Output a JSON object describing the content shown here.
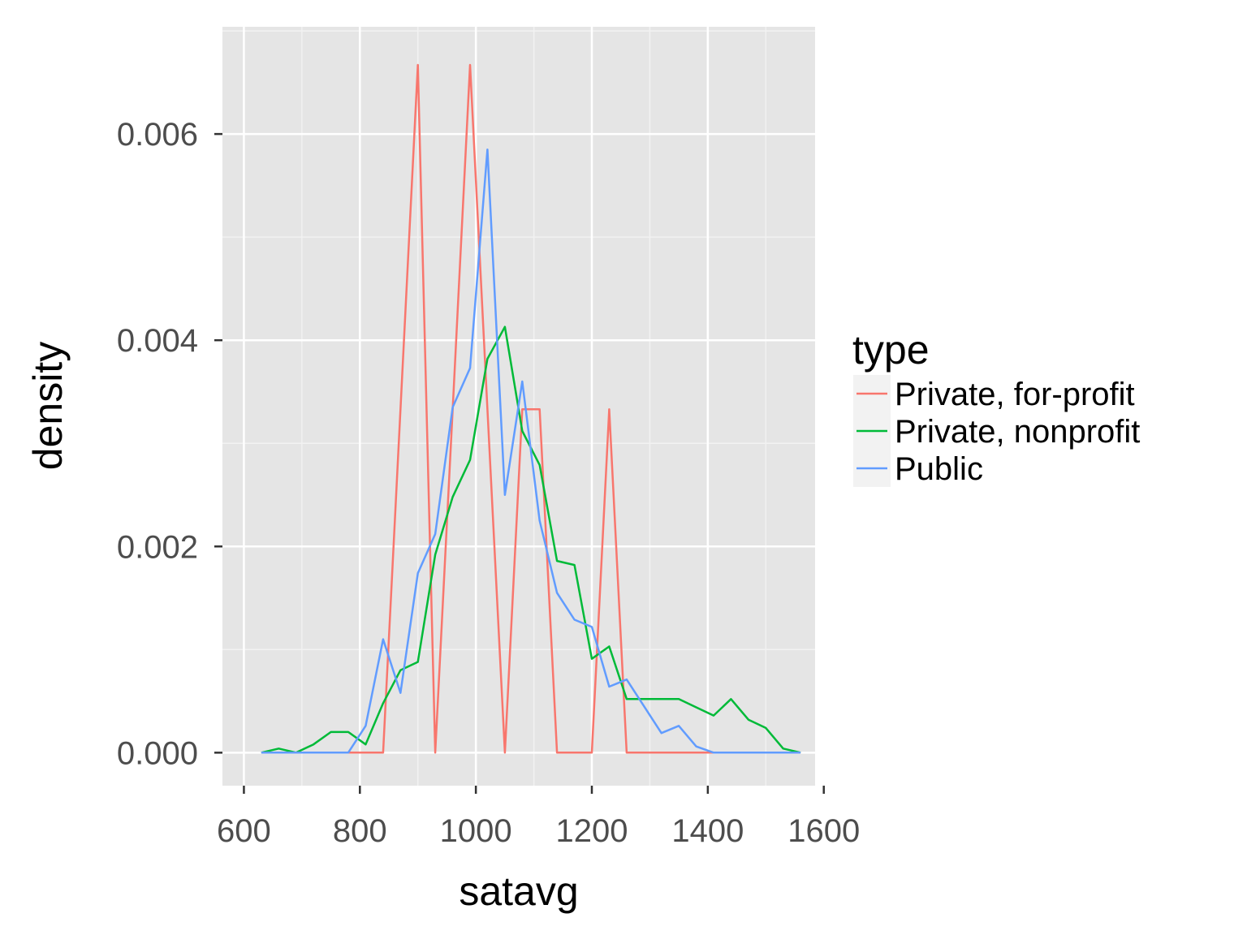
{
  "chart_data": {
    "type": "line",
    "title": "",
    "xlabel": "satavg",
    "ylabel": "density",
    "xlim": [
      563,
      1585
    ],
    "ylim": [
      -0.00032,
      0.00704
    ],
    "x_ticks": [
      600,
      800,
      1000,
      1200,
      1400,
      1600
    ],
    "x_tick_labels": [
      "600",
      "800",
      "1000",
      "1200",
      "1400",
      "1600"
    ],
    "y_ticks": [
      0,
      0.002,
      0.004,
      0.006
    ],
    "y_tick_labels": [
      "0.000",
      "0.002",
      "0.004",
      "0.006"
    ],
    "grid": true,
    "legend": {
      "title": "type",
      "position": "right"
    },
    "series": [
      {
        "name": "Private, for-profit",
        "color": "#F8766D",
        "x": [
          630,
          660,
          690,
          720,
          750,
          780,
          810,
          840,
          870,
          900,
          930,
          960,
          990,
          1020,
          1050,
          1080,
          1110,
          1140,
          1170,
          1200,
          1230,
          1260,
          1290,
          1320,
          1350,
          1380,
          1410,
          1440,
          1470,
          1500,
          1530,
          1560
        ],
        "values": [
          0,
          0,
          0,
          0,
          0,
          0,
          0,
          0,
          0.00333,
          0.00667,
          0,
          0.00333,
          0.00667,
          0.00333,
          0,
          0.00333,
          0.00333,
          0,
          0,
          0,
          0.00333,
          0,
          0,
          0,
          0,
          0,
          0,
          0,
          0,
          0,
          0,
          0
        ]
      },
      {
        "name": "Private, nonprofit",
        "color": "#00BA38",
        "x": [
          630,
          660,
          690,
          720,
          750,
          780,
          810,
          840,
          870,
          900,
          930,
          960,
          990,
          1020,
          1050,
          1080,
          1110,
          1140,
          1170,
          1200,
          1230,
          1260,
          1290,
          1320,
          1350,
          1380,
          1410,
          1440,
          1470,
          1500,
          1530,
          1560
        ],
        "values": [
          0,
          4e-05,
          0,
          8e-05,
          0.0002,
          0.0002,
          8e-05,
          0.00048,
          0.0008,
          0.00088,
          0.00192,
          0.00248,
          0.00284,
          0.00382,
          0.00413,
          0.00312,
          0.00279,
          0.00186,
          0.00182,
          0.00091,
          0.00103,
          0.00052,
          0.00052,
          0.00052,
          0.00052,
          0.00044,
          0.00036,
          0.00052,
          0.00032,
          0.00024,
          4e-05,
          0
        ]
      },
      {
        "name": "Public",
        "color": "#619CFF",
        "x": [
          630,
          660,
          690,
          720,
          750,
          780,
          810,
          840,
          870,
          900,
          930,
          960,
          990,
          1020,
          1050,
          1080,
          1110,
          1140,
          1170,
          1200,
          1230,
          1260,
          1290,
          1320,
          1350,
          1380,
          1410,
          1440,
          1470,
          1500,
          1530,
          1560
        ],
        "values": [
          0,
          0,
          0,
          0,
          0,
          0,
          0.00026,
          0.0011,
          0.00058,
          0.00174,
          0.00212,
          0.00335,
          0.00373,
          0.00585,
          0.0025,
          0.0036,
          0.00225,
          0.00155,
          0.00129,
          0.00122,
          0.00064,
          0.00071,
          0.00045,
          0.00019,
          0.00026,
          6e-05,
          0,
          0,
          0,
          0,
          0,
          0
        ]
      }
    ]
  }
}
